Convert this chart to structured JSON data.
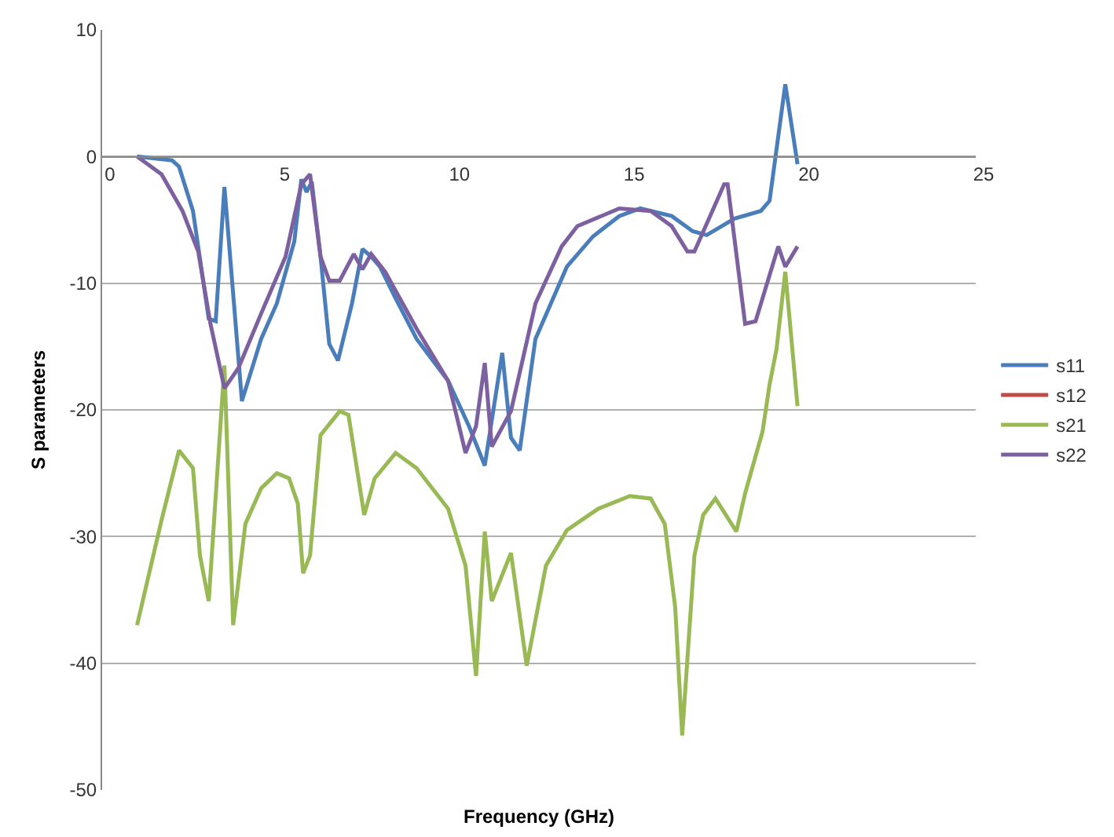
{
  "chart_data": {
    "type": "line",
    "xlabel": "Frequency (GHz)",
    "ylabel": "S parameters",
    "xlim": [
      0,
      25
    ],
    "xticks": [
      0,
      5,
      10,
      15,
      20,
      25
    ],
    "ylim": [
      -50,
      10
    ],
    "yticks": [
      -50,
      -40,
      -30,
      -20,
      -10,
      0,
      10
    ],
    "grid": "y",
    "legend": "right",
    "marker": "none",
    "line_style": "solid",
    "series": [
      {
        "name": "s11",
        "color": "#4a7ebb",
        "x": [
          1.0,
          2.0,
          2.2,
          2.6,
          3.05,
          3.25,
          3.5,
          4.0,
          4.55,
          5.0,
          5.5,
          5.7,
          5.85,
          6.0,
          6.25,
          6.5,
          6.75,
          7.15,
          7.45,
          7.7,
          7.95,
          8.4,
          9.0,
          9.9,
          10.5,
          10.95,
          11.45,
          11.7,
          11.95,
          12.4,
          13.3,
          14.05,
          14.8,
          15.4,
          16.3,
          16.9,
          17.3,
          18.1,
          18.85,
          19.1,
          19.55,
          19.9
        ],
        "values": [
          0,
          -0.3,
          -0.8,
          -4.3,
          -12.8,
          -13,
          -2.4,
          -19.3,
          -14.4,
          -11.6,
          -6.7,
          -1.8,
          -2.8,
          -2,
          -7.9,
          -14.8,
          -16.1,
          -11.6,
          -7.3,
          -7.9,
          -8.7,
          -11.2,
          -14.4,
          -17.7,
          -21.3,
          -24.4,
          -15.5,
          -22.2,
          -23.2,
          -14.4,
          -8.7,
          -6.3,
          -4.7,
          -4.1,
          -4.7,
          -5.9,
          -6.2,
          -4.9,
          -4.3,
          -3.5,
          5.7,
          -0.6
        ]
      },
      {
        "name": "s12",
        "color": "#be4b48"
      },
      {
        "name": "s21",
        "color": "#98b954",
        "x": [
          1.0,
          1.7,
          2.2,
          2.6,
          2.8,
          3.05,
          3.5,
          3.75,
          4.1,
          4.55,
          5.0,
          5.35,
          5.6,
          5.75,
          5.95,
          6.25,
          6.8,
          7.05,
          7.5,
          7.8,
          8.4,
          9.0,
          9.9,
          10.4,
          10.7,
          10.95,
          11.15,
          11.7,
          12.15,
          12.7,
          13.3,
          14.2,
          15.1,
          15.7,
          16.1,
          16.4,
          16.6,
          16.95,
          17.2,
          17.55,
          18.15,
          18.4,
          18.9,
          19.1,
          19.3,
          19.55,
          19.9
        ],
        "values": [
          -37,
          -28.7,
          -23.2,
          -24.6,
          -31.5,
          -35.1,
          -16.5,
          -37,
          -29,
          -26.2,
          -25,
          -25.4,
          -27.4,
          -32.9,
          -31.5,
          -22,
          -20.1,
          -20.4,
          -28.3,
          -25.4,
          -23.4,
          -24.6,
          -27.8,
          -32.3,
          -41,
          -29.6,
          -35.1,
          -31.3,
          -40.2,
          -32.3,
          -29.5,
          -27.8,
          -26.8,
          -27,
          -29,
          -35.6,
          -45.7,
          -31.5,
          -28.3,
          -27,
          -29.6,
          -26.6,
          -21.7,
          -18,
          -15.2,
          -9.1,
          -19.7
        ]
      },
      {
        "name": "s22",
        "color": "#7d60a0",
        "x": [
          1.0,
          1.7,
          2.3,
          2.75,
          3.1,
          3.5,
          3.9,
          4.55,
          5.25,
          5.7,
          5.95,
          6.25,
          6.5,
          6.8,
          7.2,
          7.45,
          7.7,
          8.1,
          9.0,
          9.9,
          10.4,
          10.7,
          10.95,
          11.15,
          11.7,
          12.4,
          13.15,
          13.6,
          14.8,
          15.7,
          16.3,
          16.75,
          16.95,
          17.8,
          17.9,
          18.4,
          18.7,
          19.35,
          19.55,
          19.9
        ],
        "values": [
          0,
          -1.4,
          -4.3,
          -7.5,
          -13.2,
          -18.3,
          -16.7,
          -12.4,
          -7.9,
          -2.2,
          -1.4,
          -7.9,
          -9.8,
          -9.8,
          -7.7,
          -8.9,
          -7.7,
          -9.1,
          -13.6,
          -17.7,
          -23.4,
          -21.3,
          -16.3,
          -22.9,
          -20.1,
          -11.6,
          -7.1,
          -5.5,
          -4.1,
          -4.3,
          -5.5,
          -7.5,
          -7.5,
          -2.2,
          -2.2,
          -13.2,
          -13,
          -7.1,
          -8.7,
          -7.1
        ]
      }
    ]
  }
}
